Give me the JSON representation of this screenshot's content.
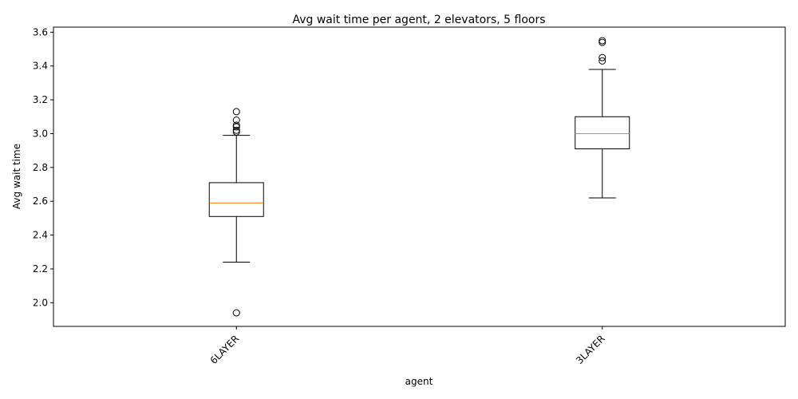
{
  "chart_data": {
    "type": "boxplot",
    "title": "Avg wait time per agent, 2 elevators, 5 floors",
    "xlabel": "agent",
    "ylabel": "Avg wait time",
    "ylim": [
      1.86,
      3.63
    ],
    "yticks": [
      2.0,
      2.2,
      2.4,
      2.6,
      2.8,
      3.0,
      3.2,
      3.4,
      3.6
    ],
    "ytick_labels": [
      "2.0",
      "2.2",
      "2.4",
      "2.6",
      "2.8",
      "3.0",
      "3.2",
      "3.4",
      "3.6"
    ],
    "categories": [
      "6LAYER",
      "3LAYER"
    ],
    "x_tick_rotation": 45,
    "grid": false,
    "boxes": [
      {
        "label": "6LAYER",
        "whisker_low": 2.24,
        "q1": 2.51,
        "median": 2.59,
        "q3": 2.71,
        "whisker_high": 2.99,
        "outliers": [
          1.94,
          3.01,
          3.02,
          3.04,
          3.05,
          3.08,
          3.13
        ]
      },
      {
        "label": "3LAYER",
        "whisker_low": 2.62,
        "q1": 2.91,
        "median": 3.0,
        "q3": 3.1,
        "whisker_high": 3.38,
        "outliers": [
          3.43,
          3.45,
          3.54,
          3.55
        ]
      }
    ],
    "colors": {
      "box": "#000000",
      "median": "#ff7f0e",
      "outlier": "#000000"
    }
  }
}
